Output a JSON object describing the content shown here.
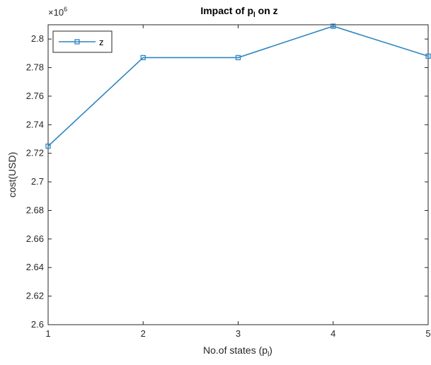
{
  "chart_data": {
    "type": "line",
    "title_prefix": "Impact of p",
    "title_subscript": "l",
    "title_suffix": " on z",
    "xlabel_prefix": "No.of states (p",
    "xlabel_subscript": "l",
    "xlabel_suffix": ")",
    "ylabel": "cost(USD)",
    "y_exponent_base": "×10",
    "y_exponent": "6",
    "x": [
      1,
      2,
      3,
      4,
      5
    ],
    "xlim": [
      1,
      5
    ],
    "ylim": [
      2.6,
      2.81
    ],
    "x_ticks": [
      "1",
      "2",
      "3",
      "4",
      "5"
    ],
    "y_ticks": [
      "2.6",
      "2.62",
      "2.64",
      "2.66",
      "2.68",
      "2.7",
      "2.72",
      "2.74",
      "2.76",
      "2.78",
      "2.8"
    ],
    "grid": false,
    "legend_position": "top-left",
    "series": [
      {
        "name": "z",
        "marker": "square",
        "color": "#2e86c1",
        "values": [
          2.725,
          2.787,
          2.787,
          2.809,
          2.788
        ]
      }
    ]
  }
}
